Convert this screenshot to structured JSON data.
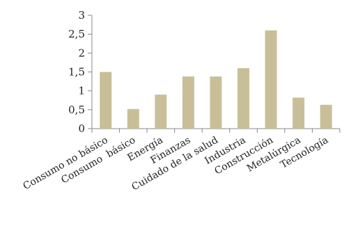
{
  "chart_data": {
    "type": "bar",
    "title": "",
    "xlabel": "",
    "ylabel": "",
    "categories": [
      "Consumo no básico",
      "Consumo  básico",
      "Energía",
      "Finanzas",
      "Cuidado de la salud",
      "Industria",
      "Construcción",
      "Metalúrgica",
      "Tecnología"
    ],
    "values": [
      1.5,
      0.52,
      0.9,
      1.38,
      1.38,
      1.6,
      2.6,
      0.82,
      0.63
    ],
    "ylim": [
      0,
      3
    ],
    "yticks": [
      "0",
      "0,5",
      "1",
      "1,5",
      "2",
      "2,5",
      "3"
    ],
    "grid": false,
    "bar_color": "#c8bf99",
    "axis_color": "#888888"
  }
}
